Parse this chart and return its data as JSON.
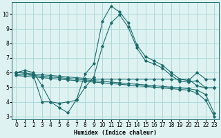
{
  "xlabel": "Humidex (Indice chaleur)",
  "xlim": [
    -0.5,
    23.5
  ],
  "ylim": [
    2.8,
    10.8
  ],
  "yticks": [
    3,
    4,
    5,
    6,
    7,
    8,
    9,
    10
  ],
  "xticks": [
    0,
    1,
    2,
    3,
    4,
    5,
    6,
    7,
    8,
    9,
    10,
    11,
    12,
    13,
    14,
    15,
    16,
    17,
    18,
    19,
    20,
    21,
    22,
    23
  ],
  "bg_color": "#dff2f2",
  "line_color": "#1a6b6b",
  "grid_color": "#aed8d8",
  "lines": [
    {
      "x": [
        0,
        1,
        2,
        3,
        4,
        5,
        6,
        7,
        8,
        9,
        10,
        11,
        12,
        13,
        14,
        15,
        16,
        17,
        18,
        19,
        20,
        21,
        22,
        23
      ],
      "y": [
        6.0,
        6.15,
        6.0,
        5.1,
        4.0,
        3.6,
        3.25,
        4.15,
        5.9,
        6.6,
        9.5,
        10.55,
        10.15,
        9.4,
        7.9,
        7.1,
        6.8,
        6.5,
        6.0,
        5.55,
        5.45,
        6.0,
        5.55,
        5.55
      ]
    },
    {
      "x": [
        0,
        1,
        2,
        3,
        4,
        5,
        6,
        7,
        8,
        9,
        10,
        11,
        12,
        13,
        14,
        15,
        16,
        17,
        18,
        19,
        20,
        21,
        22,
        23
      ],
      "y": [
        6.0,
        6.0,
        5.8,
        4.0,
        4.0,
        3.9,
        4.0,
        4.1,
        5.0,
        5.7,
        7.8,
        9.4,
        9.95,
        9.1,
        7.7,
        6.8,
        6.6,
        6.3,
        5.8,
        5.4,
        5.35,
        5.45,
        4.95,
        4.95
      ]
    },
    {
      "x": [
        0,
        1,
        2,
        3,
        4,
        5,
        6,
        7,
        8,
        9,
        10,
        11,
        12,
        13,
        14,
        15,
        16,
        17,
        18,
        19,
        20,
        21,
        22,
        23
      ],
      "y": [
        6.0,
        5.95,
        5.9,
        5.85,
        5.8,
        5.75,
        5.7,
        5.65,
        5.6,
        5.55,
        5.55,
        5.55,
        5.55,
        5.55,
        5.55,
        5.55,
        5.55,
        5.55,
        5.55,
        5.55,
        5.55,
        5.1,
        4.95,
        4.95
      ]
    },
    {
      "x": [
        0,
        1,
        2,
        3,
        4,
        5,
        6,
        7,
        8,
        9,
        10,
        11,
        12,
        13,
        14,
        15,
        16,
        17,
        18,
        19,
        20,
        21,
        22,
        23
      ],
      "y": [
        5.9,
        5.85,
        5.8,
        5.75,
        5.7,
        5.65,
        5.6,
        5.55,
        5.5,
        5.45,
        5.4,
        5.35,
        5.3,
        5.25,
        5.2,
        5.15,
        5.1,
        5.05,
        5.0,
        4.95,
        4.9,
        4.8,
        4.5,
        3.2
      ]
    },
    {
      "x": [
        0,
        1,
        2,
        3,
        4,
        5,
        6,
        7,
        8,
        9,
        10,
        11,
        12,
        13,
        14,
        15,
        16,
        17,
        18,
        19,
        20,
        21,
        22,
        23
      ],
      "y": [
        5.8,
        5.75,
        5.7,
        5.65,
        5.6,
        5.55,
        5.5,
        5.45,
        5.4,
        5.35,
        5.3,
        5.25,
        5.2,
        5.15,
        5.1,
        5.05,
        5.0,
        4.95,
        4.9,
        4.85,
        4.8,
        4.6,
        4.1,
        3.0
      ]
    }
  ]
}
